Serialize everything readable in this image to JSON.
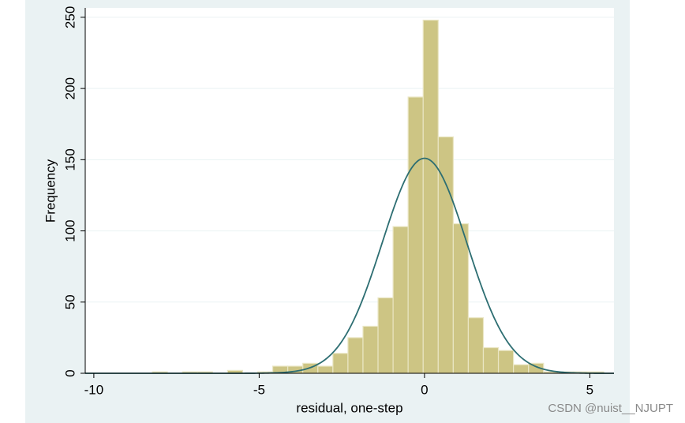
{
  "chart_data": {
    "type": "histogram",
    "xlabel": "residual, one-step",
    "ylabel": "Frequency",
    "bins": [
      -8.23,
      -7.775,
      -7.32,
      -6.865,
      -6.41,
      -5.955,
      -5.5,
      -5.045,
      -4.59,
      -4.135,
      -3.68,
      -3.225,
      -2.77,
      -2.315,
      -1.86,
      -1.405,
      -0.95,
      -0.495,
      -0.04,
      0.415,
      0.87,
      1.325,
      1.78,
      2.235,
      2.69,
      3.145,
      3.6,
      4.055,
      4.51,
      4.965,
      5.42
    ],
    "values": [
      1,
      0,
      1,
      1,
      0,
      2,
      0,
      1,
      5,
      5,
      7,
      5,
      14,
      25,
      33,
      53,
      103,
      194,
      248,
      166,
      105,
      39,
      18,
      16,
      6,
      7,
      1,
      1,
      1,
      1
    ],
    "color": "#cdc584",
    "density": {
      "mean": 0,
      "sd": 1.28,
      "height": 151,
      "color": "#2d6e72"
    },
    "xlim": [
      -10.26,
      5.73
    ],
    "xticks": [
      -10,
      -5,
      0,
      5
    ],
    "ylim": [
      0,
      256.6
    ],
    "yticks": [
      0,
      50,
      100,
      150,
      200,
      250
    ],
    "grid": true,
    "watermark": "CSDN @nuist__NJUPT"
  }
}
